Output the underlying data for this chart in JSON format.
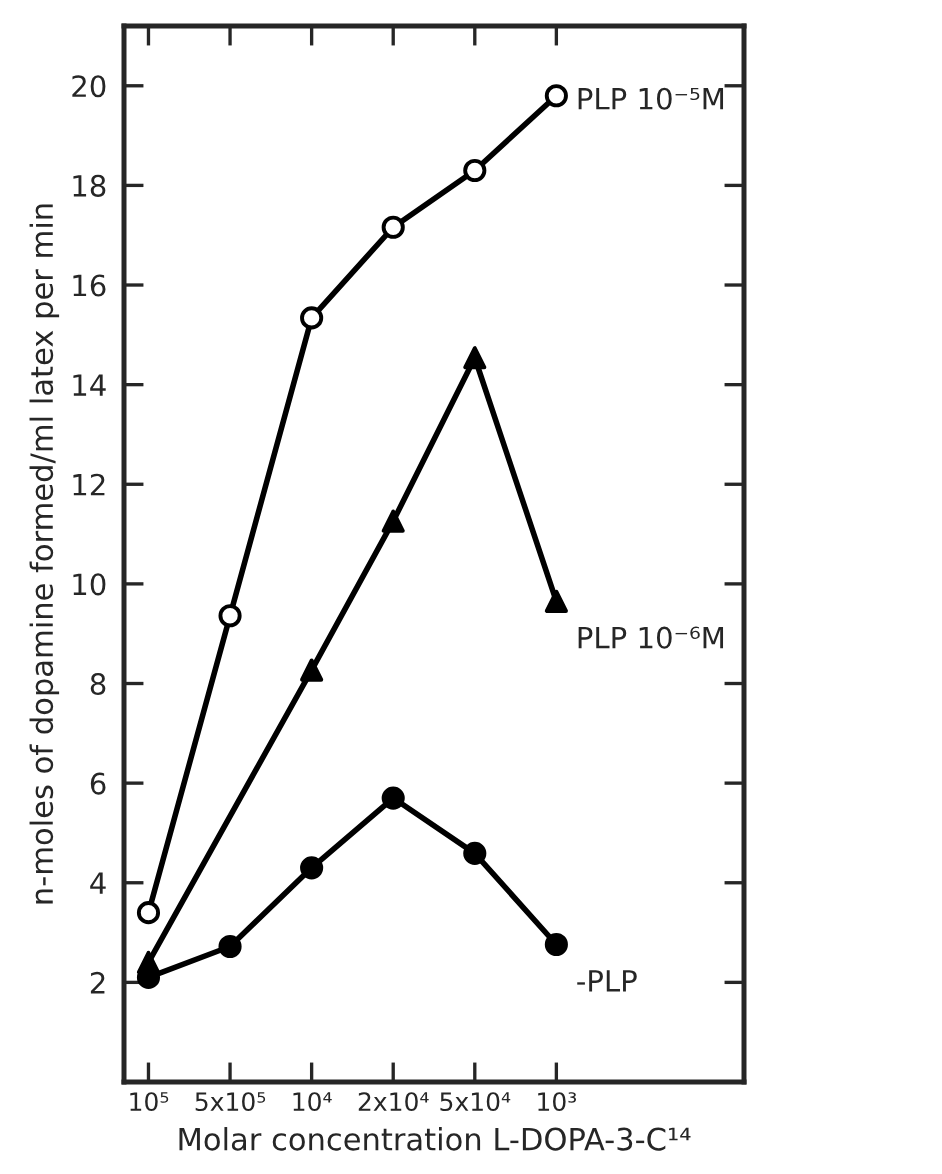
{
  "chart_data": {
    "type": "line",
    "xlabel": "Molar concentration L-DOPA-3-C¹⁴",
    "ylabel": "n-moles of dopamine formed/ml latex per min",
    "ylim": [
      0,
      21.2
    ],
    "yticks": [
      2,
      4,
      6,
      8,
      10,
      12,
      14,
      16,
      18,
      20
    ],
    "categories": [
      "10⁵",
      "5x10⁵",
      "10⁴",
      "2x10⁴",
      "5x10⁴",
      "10³"
    ],
    "grid": false,
    "legend": false,
    "line_style": "solid",
    "series": [
      {
        "name": "PLP 10⁻⁵M",
        "color": "#000000",
        "colors": [
          "#ffffff",
          "#ffffff",
          "#ffffff",
          "#ffffff",
          "#ffffff",
          "#ffffff"
        ],
        "marker": "circle",
        "values": [
          3.4,
          9.36,
          15.34,
          17.16,
          18.3,
          19.8
        ]
      },
      {
        "name": "PLP 10⁻⁶M",
        "color": "#000000",
        "marker": "triangle",
        "values": [
          2.4,
          null,
          8.27,
          11.26,
          14.54,
          9.65
        ]
      },
      {
        "name": "-PLP",
        "color": "#000000",
        "marker": "circle",
        "values": [
          2.1,
          2.72,
          4.3,
          5.7,
          4.59,
          2.76
        ]
      }
    ]
  }
}
